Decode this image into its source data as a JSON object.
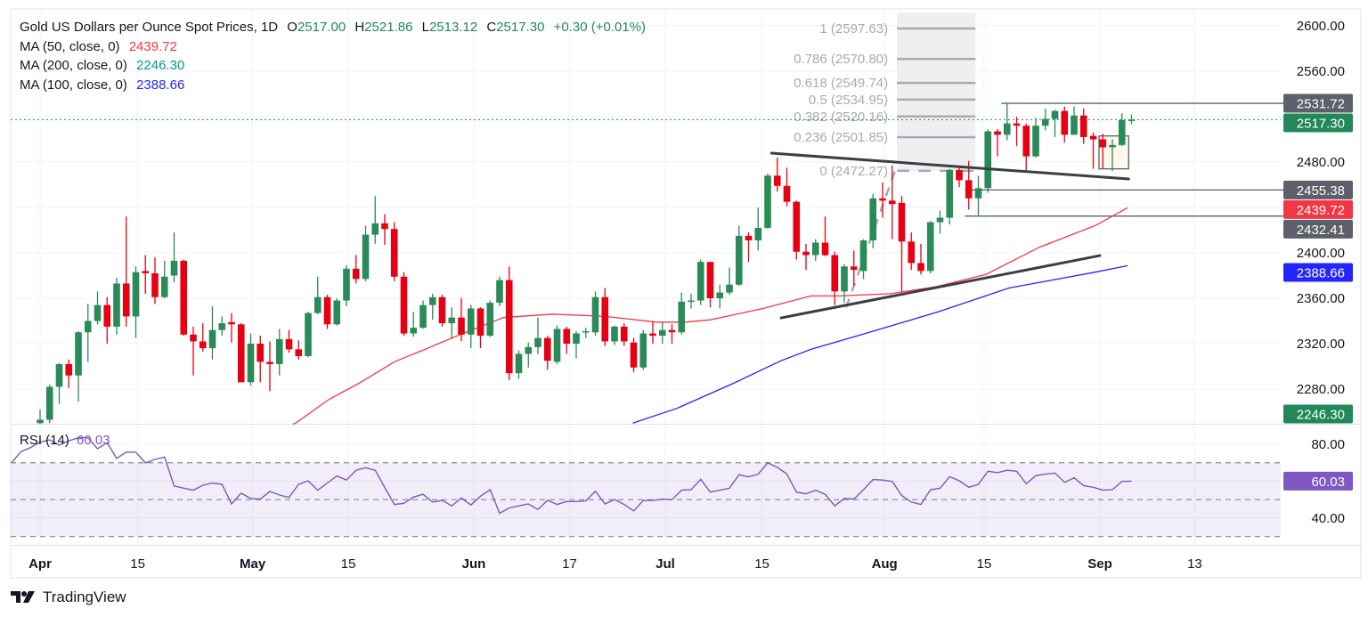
{
  "header": {
    "symbol": "Gold US Dollars per Ounce Spot Prices, 1D",
    "o_label": "O",
    "o": "2517.00",
    "h_label": "H",
    "h": "2521.86",
    "l_label": "L",
    "l": "2513.12",
    "c_label": "C",
    "c": "2517.30",
    "change": "+0.30 (+0.01%)"
  },
  "indicators": [
    {
      "label": "MA (50, close, 0)",
      "value": "2439.72",
      "color": "#f23645"
    },
    {
      "label": "MA (200, close, 0)",
      "value": "2246.30",
      "color": "#089981"
    },
    {
      "label": "MA (100, close, 0)",
      "value": "2388.66",
      "color": "#2424ff"
    }
  ],
  "rsi_legend": {
    "label": "RSI (14)",
    "value": "60.03",
    "color": "#7e57c2"
  },
  "branding": {
    "name": "TradingView"
  },
  "colors": {
    "up": "#2a8a58",
    "down": "#e60012",
    "ma50": "#f23645",
    "ma100": "#2424ff",
    "rsi": "#7e57c2",
    "tag_gray": "#5d606b",
    "last_price": "#22885a"
  },
  "chart_data": {
    "type": "candlestick",
    "title": "Gold US Dollars per Ounce Spot Prices, 1D",
    "ylim": [
      2249.4,
      2614.9
    ],
    "candles": [
      [
        2250,
        2262,
        2249,
        2253
      ],
      [
        2253,
        2284,
        2250,
        2282
      ],
      [
        2282,
        2303,
        2267,
        2302
      ],
      [
        2302,
        2306,
        2281,
        2292
      ],
      [
        2292,
        2331,
        2269,
        2330
      ],
      [
        2330,
        2355,
        2304,
        2340
      ],
      [
        2340,
        2366,
        2337,
        2354
      ],
      [
        2354,
        2361,
        2320,
        2335
      ],
      [
        2335,
        2378,
        2328,
        2373
      ],
      [
        2373,
        2432,
        2335,
        2344
      ],
      [
        2344,
        2388,
        2325,
        2383
      ],
      [
        2384,
        2398,
        2364,
        2382
      ],
      [
        2382,
        2396,
        2355,
        2361
      ],
      [
        2361,
        2393,
        2360,
        2379
      ],
      [
        2380,
        2418,
        2374,
        2393
      ],
      [
        2393,
        2394,
        2327,
        2328
      ],
      [
        2328,
        2335,
        2292,
        2322
      ],
      [
        2322,
        2338,
        2313,
        2316
      ],
      [
        2316,
        2353,
        2306,
        2332
      ],
      [
        2332,
        2344,
        2327,
        2338
      ],
      [
        2339,
        2347,
        2321,
        2337
      ],
      [
        2337,
        2338,
        2286,
        2286
      ],
      [
        2286,
        2329,
        2283,
        2320
      ],
      [
        2320,
        2327,
        2286,
        2304
      ],
      [
        2304,
        2322,
        2278,
        2302
      ],
      [
        2302,
        2333,
        2292,
        2324
      ],
      [
        2324,
        2332,
        2312,
        2315
      ],
      [
        2315,
        2323,
        2306,
        2309
      ],
      [
        2309,
        2348,
        2308,
        2347
      ],
      [
        2347,
        2379,
        2346,
        2361
      ],
      [
        2361,
        2363,
        2333,
        2337
      ],
      [
        2337,
        2360,
        2336,
        2358
      ],
      [
        2358,
        2389,
        2353,
        2386
      ],
      [
        2386,
        2398,
        2373,
        2377
      ],
      [
        2377,
        2424,
        2375,
        2416
      ],
      [
        2416,
        2450,
        2408,
        2426
      ],
      [
        2426,
        2434,
        2407,
        2421
      ],
      [
        2421,
        2427,
        2375,
        2379
      ],
      [
        2379,
        2383,
        2327,
        2329
      ],
      [
        2329,
        2348,
        2326,
        2334
      ],
      [
        2334,
        2358,
        2333,
        2354
      ],
      [
        2354,
        2364,
        2341,
        2361
      ],
      [
        2361,
        2363,
        2335,
        2338
      ],
      [
        2338,
        2352,
        2324,
        2343
      ],
      [
        2343,
        2360,
        2322,
        2328
      ],
      [
        2328,
        2354,
        2316,
        2351
      ],
      [
        2351,
        2352,
        2316,
        2327
      ],
      [
        2327,
        2358,
        2326,
        2356
      ],
      [
        2356,
        2379,
        2353,
        2376
      ],
      [
        2376,
        2388,
        2288,
        2294
      ],
      [
        2294,
        2314,
        2289,
        2311
      ],
      [
        2311,
        2321,
        2299,
        2317
      ],
      [
        2317,
        2343,
        2311,
        2325
      ],
      [
        2325,
        2327,
        2297,
        2305
      ],
      [
        2304,
        2336,
        2302,
        2333
      ],
      [
        2333,
        2335,
        2311,
        2320
      ],
      [
        2320,
        2331,
        2307,
        2329
      ],
      [
        2330,
        2334,
        2325,
        2331
      ],
      [
        2330,
        2366,
        2327,
        2361
      ],
      [
        2361,
        2369,
        2318,
        2322
      ],
      [
        2322,
        2336,
        2319,
        2335
      ],
      [
        2335,
        2338,
        2318,
        2322
      ],
      [
        2321,
        2325,
        2295,
        2299
      ],
      [
        2299,
        2332,
        2297,
        2329
      ],
      [
        2329,
        2340,
        2320,
        2327
      ],
      [
        2327,
        2339,
        2320,
        2332
      ],
      [
        2332,
        2337,
        2320,
        2330
      ],
      [
        2330,
        2365,
        2328,
        2357
      ],
      [
        2357,
        2364,
        2351,
        2358
      ],
      [
        2358,
        2394,
        2354,
        2392
      ],
      [
        2392,
        2392,
        2352,
        2360
      ],
      [
        2360,
        2372,
        2351,
        2365
      ],
      [
        2365,
        2387,
        2363,
        2372
      ],
      [
        2372,
        2424,
        2371,
        2415
      ],
      [
        2415,
        2418,
        2392,
        2411
      ],
      [
        2411,
        2440,
        2402,
        2422
      ],
      [
        2422,
        2470,
        2421,
        2468
      ],
      [
        2468,
        2484,
        2454,
        2459
      ],
      [
        2459,
        2475,
        2441,
        2445
      ],
      [
        2445,
        2446,
        2394,
        2401
      ],
      [
        2401,
        2408,
        2385,
        2398
      ],
      [
        2398,
        2412,
        2393,
        2409
      ],
      [
        2409,
        2432,
        2397,
        2398
      ],
      [
        2398,
        2401,
        2354,
        2366
      ],
      [
        2366,
        2390,
        2356,
        2388
      ],
      [
        2388,
        2402,
        2371,
        2385
      ],
      [
        2384,
        2412,
        2377,
        2411
      ],
      [
        2411,
        2452,
        2404,
        2448
      ],
      [
        2448,
        2462,
        2431,
        2446
      ],
      [
        2446,
        2477,
        2412,
        2443
      ],
      [
        2444,
        2450,
        2365,
        2410
      ],
      [
        2410,
        2418,
        2385,
        2391
      ],
      [
        2391,
        2408,
        2381,
        2384
      ],
      [
        2384,
        2428,
        2382,
        2427
      ],
      [
        2427,
        2437,
        2417,
        2431
      ],
      [
        2431,
        2474,
        2425,
        2473
      ],
      [
        2473,
        2476,
        2458,
        2464
      ],
      [
        2464,
        2481,
        2438,
        2448
      ],
      [
        2448,
        2468,
        2433,
        2457
      ],
      [
        2457,
        2509,
        2453,
        2507
      ],
      [
        2507,
        2509,
        2485,
        2504
      ],
      [
        2504,
        2532,
        2499,
        2514
      ],
      [
        2514,
        2520,
        2494,
        2512
      ],
      [
        2512,
        2514,
        2471,
        2485
      ],
      [
        2485,
        2519,
        2484,
        2512
      ],
      [
        2512,
        2527,
        2508,
        2518
      ],
      [
        2518,
        2526,
        2502,
        2525
      ],
      [
        2525,
        2529,
        2497,
        2504
      ],
      [
        2504,
        2529,
        2504,
        2521
      ],
      [
        2521,
        2527,
        2496,
        2502
      ],
      [
        2503,
        2506,
        2474,
        2500
      ],
      [
        2500,
        2505,
        2474,
        2493
      ],
      [
        2493,
        2500,
        2472,
        2495
      ],
      [
        2495,
        2523,
        2494,
        2517
      ],
      [
        2517,
        2521.86,
        2513.12,
        2517.3
      ]
    ],
    "x_ticks": [
      {
        "label": "Apr",
        "bar": 0,
        "major": true
      },
      {
        "label": "15",
        "bar": 10.2,
        "major": false
      },
      {
        "label": "May",
        "bar": 22.2,
        "major": true
      },
      {
        "label": "15",
        "bar": 32.2,
        "major": false
      },
      {
        "label": "Jun",
        "bar": 45.3,
        "major": true
      },
      {
        "label": "17",
        "bar": 55.3,
        "major": false
      },
      {
        "label": "Jul",
        "bar": 65.3,
        "major": true
      },
      {
        "label": "15",
        "bar": 75.4,
        "major": false
      },
      {
        "label": "Aug",
        "bar": 88.2,
        "major": true
      },
      {
        "label": "15",
        "bar": 98.6,
        "major": false
      },
      {
        "label": "Sep",
        "bar": 110.7,
        "major": true
      },
      {
        "label": "13",
        "bar": 120.6,
        "major": false
      }
    ],
    "y_ticks": [
      {
        "label": "2600.00",
        "value": 2600
      },
      {
        "label": "2560.00",
        "value": 2560
      },
      {
        "label": "2480.00",
        "value": 2480
      },
      {
        "label": "2400.00",
        "value": 2400
      },
      {
        "label": "2360.00",
        "value": 2360
      },
      {
        "label": "2320.00",
        "value": 2320
      },
      {
        "label": "2280.00",
        "value": 2280
      }
    ],
    "y_grid": [
      2600,
      2560,
      2520,
      2480,
      2440,
      2400,
      2360,
      2320,
      2280
    ],
    "price_tags": [
      {
        "label": "2531.72",
        "value": 2531.72,
        "color": "#5d606b"
      },
      {
        "label": "2517.30",
        "value": 2517.3,
        "color": "#22885a"
      },
      {
        "label": "2455.38",
        "value": 2455.38,
        "color": "#5d606b"
      },
      {
        "label": "2439.72",
        "value": 2439.72,
        "color": "#f23645"
      },
      {
        "label": "2432.41",
        "value": 2432.41,
        "color": "#5d606b"
      },
      {
        "label": "2388.66",
        "value": 2388.66,
        "color": "#2424ff"
      },
      {
        "label": "2246.30",
        "value": 2246.3,
        "color": "#22885a"
      }
    ],
    "last_price": 2517.3,
    "ma50": [
      [
        26.4,
        2249
      ],
      [
        26.7,
        2250
      ],
      [
        30.2,
        2271
      ],
      [
        33.3,
        2285
      ],
      [
        37.0,
        2304
      ],
      [
        40.2,
        2315
      ],
      [
        43.3,
        2326
      ],
      [
        48.4,
        2343
      ],
      [
        53.5,
        2346
      ],
      [
        59,
        2344
      ],
      [
        64.4,
        2339
      ],
      [
        67.4,
        2339
      ],
      [
        70.0,
        2341
      ],
      [
        75.5,
        2351
      ],
      [
        80.5,
        2362
      ],
      [
        83.5,
        2362
      ],
      [
        88.8,
        2364
      ],
      [
        93.5,
        2370
      ],
      [
        98.8,
        2381
      ],
      [
        104.4,
        2405
      ],
      [
        110.2,
        2424
      ],
      [
        113.6,
        2439.72
      ]
    ],
    "ma100": [
      [
        61.9,
        2250
      ],
      [
        66.5,
        2263
      ],
      [
        72.4,
        2285
      ],
      [
        77.4,
        2305
      ],
      [
        80.5,
        2315
      ],
      [
        87,
        2331
      ],
      [
        93.8,
        2348
      ],
      [
        101.2,
        2369
      ],
      [
        110.2,
        2383
      ],
      [
        113.6,
        2388.66
      ]
    ],
    "ma200_value": 2246.3,
    "trendlines": [
      {
        "from": [
          76.4,
          2487.8
        ],
        "to": [
          113.7,
          2465.1
        ]
      },
      {
        "from": [
          77.4,
          2342.7
        ],
        "to": [
          110.7,
          2397.6
        ]
      }
    ],
    "hlines": [
      {
        "from_bar": 100.4,
        "value": 2531.72
      },
      {
        "from_bar": 96.6,
        "value": 2455.38
      },
      {
        "from_bar": 96.6,
        "value": 2432.41
      }
    ],
    "box": {
      "bars": [
        110.6,
        113.7
      ],
      "prices": [
        2474,
        2503
      ]
    },
    "fib": {
      "bars": [
        89.5,
        97.7
      ],
      "top": 2611.8,
      "leg": {
        "from": [
          84.2,
          2352
        ],
        "to": [
          89.5,
          2477
        ]
      },
      "levels": [
        {
          "label": "1 (2597.63)",
          "value": 2597.63
        },
        {
          "label": "0.786 (2570.80)",
          "value": 2570.8
        },
        {
          "label": "0.618 (2549.74)",
          "value": 2549.74
        },
        {
          "label": "0.5 (2534.95)",
          "value": 2534.95
        },
        {
          "label": "0.382 (2520.16)",
          "value": 2520.16
        },
        {
          "label": "0.236 (2501.85)",
          "value": 2501.85
        },
        {
          "label": "0 (2472.27)",
          "value": 2472.27
        }
      ]
    },
    "rsi": {
      "period": 14,
      "ylim": [
        25.5,
        90.6
      ],
      "levels": [
        70,
        50,
        30
      ],
      "y_ticks": [
        {
          "label": "80.00",
          "value": 80
        },
        {
          "label": "40.00",
          "value": 40
        }
      ],
      "y_grid": [
        80,
        60,
        40
      ],
      "tag": {
        "label": "60.03",
        "value": 60.03
      },
      "start_bar": -4,
      "values": [
        66.7,
        69.9,
        76.0,
        78.2,
        81.1,
        82.4,
        79.5,
        81.9,
        83.5,
        83.5,
        77.6,
        80.8,
        72.3,
        75.8,
        75.7,
        69.9,
        71.8,
        73.1,
        57.4,
        56.2,
        55.1,
        57.8,
        59.0,
        58.3,
        47.7,
        53.5,
        50.6,
        50.3,
        54.5,
        52.5,
        51.2,
        58.3,
        60.2,
        55.1,
        59.0,
        62.8,
        60.6,
        65.9,
        67.3,
        65.9,
        56.6,
        47.4,
        48.0,
        51.4,
        52.9,
        48.7,
        49.6,
        46.6,
        50.9,
        47.1,
        51.9,
        55.4,
        42.6,
        45.5,
        46.6,
        47.7,
        44.7,
        49.6,
        47.4,
        49.0,
        49.0,
        49.3,
        54.6,
        47.7,
        50.1,
        47.4,
        43.9,
        49.5,
        49.5,
        50.3,
        50.0,
        55.1,
        55.4,
        61.0,
        54.1,
        55.1,
        56.2,
        63.5,
        62.3,
        63.9,
        69.9,
        67.5,
        63.9,
        54.1,
        53.2,
        55.1,
        52.9,
        46.6,
        50.6,
        50.3,
        55.4,
        60.9,
        60.6,
        59.9,
        52.2,
        48.7,
        47.4,
        55.4,
        56.1,
        62.5,
        60.2,
        56.7,
        58.3,
        65.4,
        64.6,
        65.9,
        65.4,
        58.6,
        63.0,
        63.8,
        64.4,
        59.4,
        61.8,
        57.5,
        56.7,
        55.1,
        55.4,
        59.9,
        60.03
      ]
    }
  }
}
